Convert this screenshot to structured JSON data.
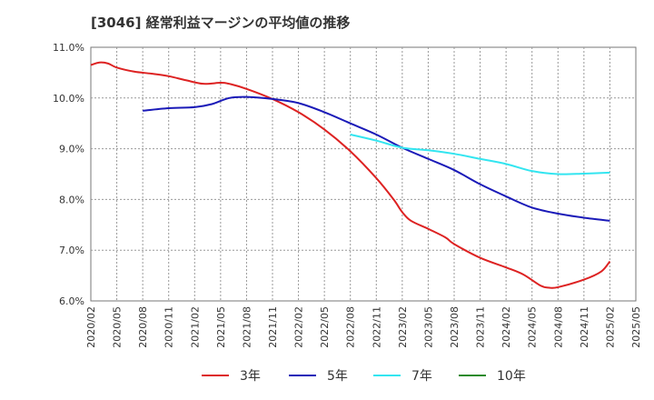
{
  "chart_data": {
    "type": "line",
    "title": "[3046]  経常利益マージンの平均値の推移",
    "xlabel": "",
    "ylabel": "",
    "ylim": [
      6.0,
      11.0
    ],
    "y_ticks": [
      "6.0%",
      "7.0%",
      "8.0%",
      "9.0%",
      "10.0%",
      "11.0%"
    ],
    "x_ticks": [
      "2020/02",
      "2020/05",
      "2020/08",
      "2020/11",
      "2021/02",
      "2021/05",
      "2021/08",
      "2021/11",
      "2022/02",
      "2022/05",
      "2022/08",
      "2022/11",
      "2023/02",
      "2023/05",
      "2023/08",
      "2023/11",
      "2024/02",
      "2024/05",
      "2024/08",
      "2024/11",
      "2025/02",
      "2025/05"
    ],
    "grid": true,
    "legend_position": "bottom",
    "series": [
      {
        "name": "3年",
        "color": "#dd2222",
        "values": [
          [
            "2020/02",
            10.65
          ],
          [
            "2020/03",
            10.7
          ],
          [
            "2020/04",
            10.68
          ],
          [
            "2020/05",
            10.6
          ],
          [
            "2020/07",
            10.52
          ],
          [
            "2020/09",
            10.48
          ],
          [
            "2020/11",
            10.43
          ],
          [
            "2021/01",
            10.35
          ],
          [
            "2021/03",
            10.28
          ],
          [
            "2021/05",
            10.3
          ],
          [
            "2021/06",
            10.28
          ],
          [
            "2021/08",
            10.18
          ],
          [
            "2021/11",
            9.98
          ],
          [
            "2022/02",
            9.72
          ],
          [
            "2022/05",
            9.38
          ],
          [
            "2022/08",
            8.95
          ],
          [
            "2022/11",
            8.42
          ],
          [
            "2023/01",
            8.0
          ],
          [
            "2023/02",
            7.75
          ],
          [
            "2023/03",
            7.58
          ],
          [
            "2023/05",
            7.42
          ],
          [
            "2023/07",
            7.25
          ],
          [
            "2023/08",
            7.12
          ],
          [
            "2023/11",
            6.85
          ],
          [
            "2024/02",
            6.66
          ],
          [
            "2024/04",
            6.52
          ],
          [
            "2024/06",
            6.3
          ],
          [
            "2024/07",
            6.26
          ],
          [
            "2024/08",
            6.27
          ],
          [
            "2024/11",
            6.42
          ],
          [
            "2025/01",
            6.58
          ],
          [
            "2025/02",
            6.78
          ]
        ]
      },
      {
        "name": "5年",
        "color": "#1a1ab8",
        "values": [
          [
            "2020/08",
            9.75
          ],
          [
            "2020/11",
            9.8
          ],
          [
            "2021/02",
            9.82
          ],
          [
            "2021/04",
            9.88
          ],
          [
            "2021/06",
            10.0
          ],
          [
            "2021/08",
            10.02
          ],
          [
            "2021/11",
            9.98
          ],
          [
            "2022/02",
            9.9
          ],
          [
            "2022/05",
            9.72
          ],
          [
            "2022/08",
            9.5
          ],
          [
            "2022/11",
            9.28
          ],
          [
            "2023/02",
            9.02
          ],
          [
            "2023/05",
            8.8
          ],
          [
            "2023/08",
            8.58
          ],
          [
            "2023/11",
            8.3
          ],
          [
            "2024/02",
            8.06
          ],
          [
            "2024/05",
            7.84
          ],
          [
            "2024/08",
            7.72
          ],
          [
            "2024/11",
            7.64
          ],
          [
            "2025/02",
            7.58
          ]
        ]
      },
      {
        "name": "7年",
        "color": "#33e5f0",
        "values": [
          [
            "2022/08",
            9.28
          ],
          [
            "2022/11",
            9.16
          ],
          [
            "2023/02",
            9.02
          ],
          [
            "2023/05",
            8.97
          ],
          [
            "2023/08",
            8.9
          ],
          [
            "2023/11",
            8.8
          ],
          [
            "2024/02",
            8.7
          ],
          [
            "2024/05",
            8.56
          ],
          [
            "2024/08",
            8.5
          ],
          [
            "2024/11",
            8.51
          ],
          [
            "2025/02",
            8.53
          ]
        ]
      },
      {
        "name": "10年",
        "color": "#2a8a2a",
        "values": []
      }
    ]
  }
}
